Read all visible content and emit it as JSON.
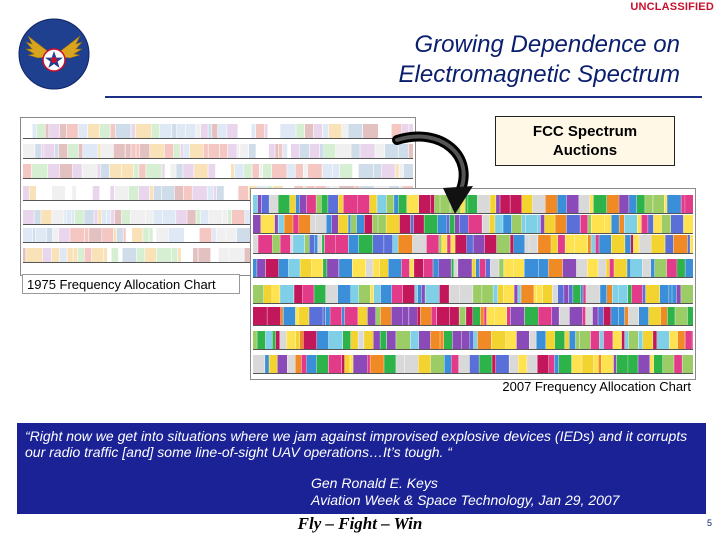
{
  "slide": {
    "classification": "UNCLASSIFIED",
    "title_line1": "Growing Dependence on",
    "title_line2": "Electromagnetic Spectrum",
    "callout": "FCC Spectrum\nAuctions",
    "callout_line1": "FCC Spectrum",
    "callout_line2": "Auctions",
    "caption_1975": "1975 Frequency Allocation Chart",
    "caption_2007": "2007 Frequency Allocation Chart",
    "quote": "“Right now we get into situations where we jam against improvised explosive devices (IEDs) and it corrupts our radio traffic [and] some line-of-sight UAV operations…It’s tough. “",
    "quote_author": "Gen Ronald E. Keys",
    "quote_source": "Aviation Week & Space Technology, Jan 29, 2007",
    "motto": "Fly – Fight – Win",
    "slide_number": "5"
  },
  "colors": {
    "classification": "#c8102e",
    "title": "#0a1e6e",
    "quote_background": "#1a2296",
    "callout_background": "#fff8e6",
    "roundel_blue": "#1f3f8f",
    "wings_gold": "#d9a521"
  },
  "icons": {
    "logo": "air-force-hap-arnold-wings-icon",
    "arrow": "curved-arrow-icon"
  }
}
